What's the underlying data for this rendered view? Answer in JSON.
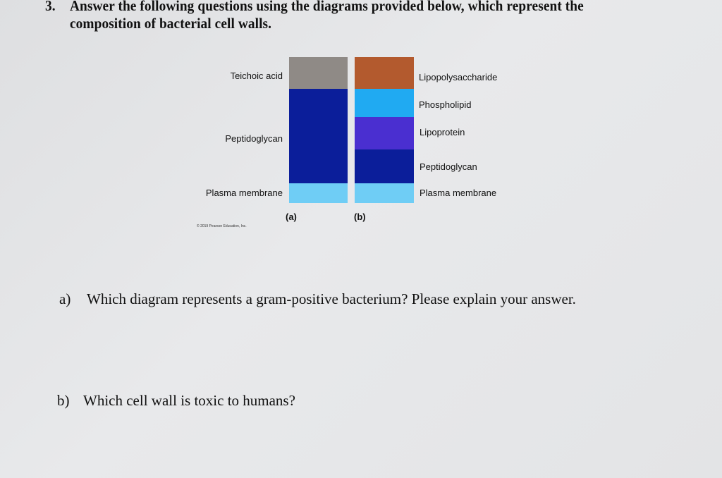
{
  "question": {
    "number": "3.",
    "line1": "Answer the following questions using the diagrams provided below, which represent the",
    "line2": "composition of bacterial cell walls."
  },
  "diagram": {
    "a": {
      "caption": "(a)",
      "layers": [
        {
          "label": "Teichoic acid",
          "color": "#8f8a86"
        },
        {
          "label": "Peptidoglycan",
          "color": "#0b1e9a"
        },
        {
          "label": "Plasma membrane",
          "color": "#6fcdf5"
        }
      ]
    },
    "b": {
      "caption": "(b)",
      "layers": [
        {
          "label": "Lipopolysaccharide",
          "color": "#b35a2e"
        },
        {
          "label": "Phospholipid",
          "color": "#20aaf2"
        },
        {
          "label": "Lipoprotein",
          "color": "#4a2fd0"
        },
        {
          "label": "Peptidoglycan",
          "color": "#0b1e9a"
        },
        {
          "label": "Plasma membrane",
          "color": "#6fcdf5"
        }
      ]
    },
    "copyright": "© 2019 Pearson Education, Inc."
  },
  "parts": [
    {
      "letter": "a)",
      "text": "Which diagram represents a gram-positive bacterium? Please explain your answer."
    },
    {
      "letter": "b)",
      "text": "Which cell wall is toxic to humans?"
    }
  ]
}
